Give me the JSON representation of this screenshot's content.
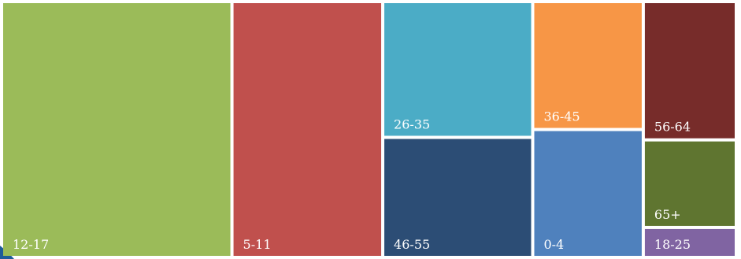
{
  "chart_data": {
    "type": "treemap",
    "title": "",
    "items": [
      {
        "label": "12-17",
        "value": 27.5,
        "color": "#9BBB59"
      },
      {
        "label": "5-11",
        "value": 18.0,
        "color": "#C0504D"
      },
      {
        "label": "26-35",
        "value": 9.5,
        "color": "#4BACC6"
      },
      {
        "label": "46-55",
        "value": 8.4,
        "color": "#2C4D75"
      },
      {
        "label": "36-45",
        "value": 6.6,
        "color": "#F79646"
      },
      {
        "label": "0-4",
        "value": 6.6,
        "color": "#4F81BD"
      },
      {
        "label": "56-64",
        "value": 6.0,
        "color": "#772C2A"
      },
      {
        "label": "65+",
        "value": 3.8,
        "color": "#5F7530"
      },
      {
        "label": "18-25",
        "value": 1.3,
        "color": "#8064A2"
      }
    ]
  },
  "colors": {
    "corner_accent": "#1F5C99",
    "gap": "#ffffff"
  }
}
